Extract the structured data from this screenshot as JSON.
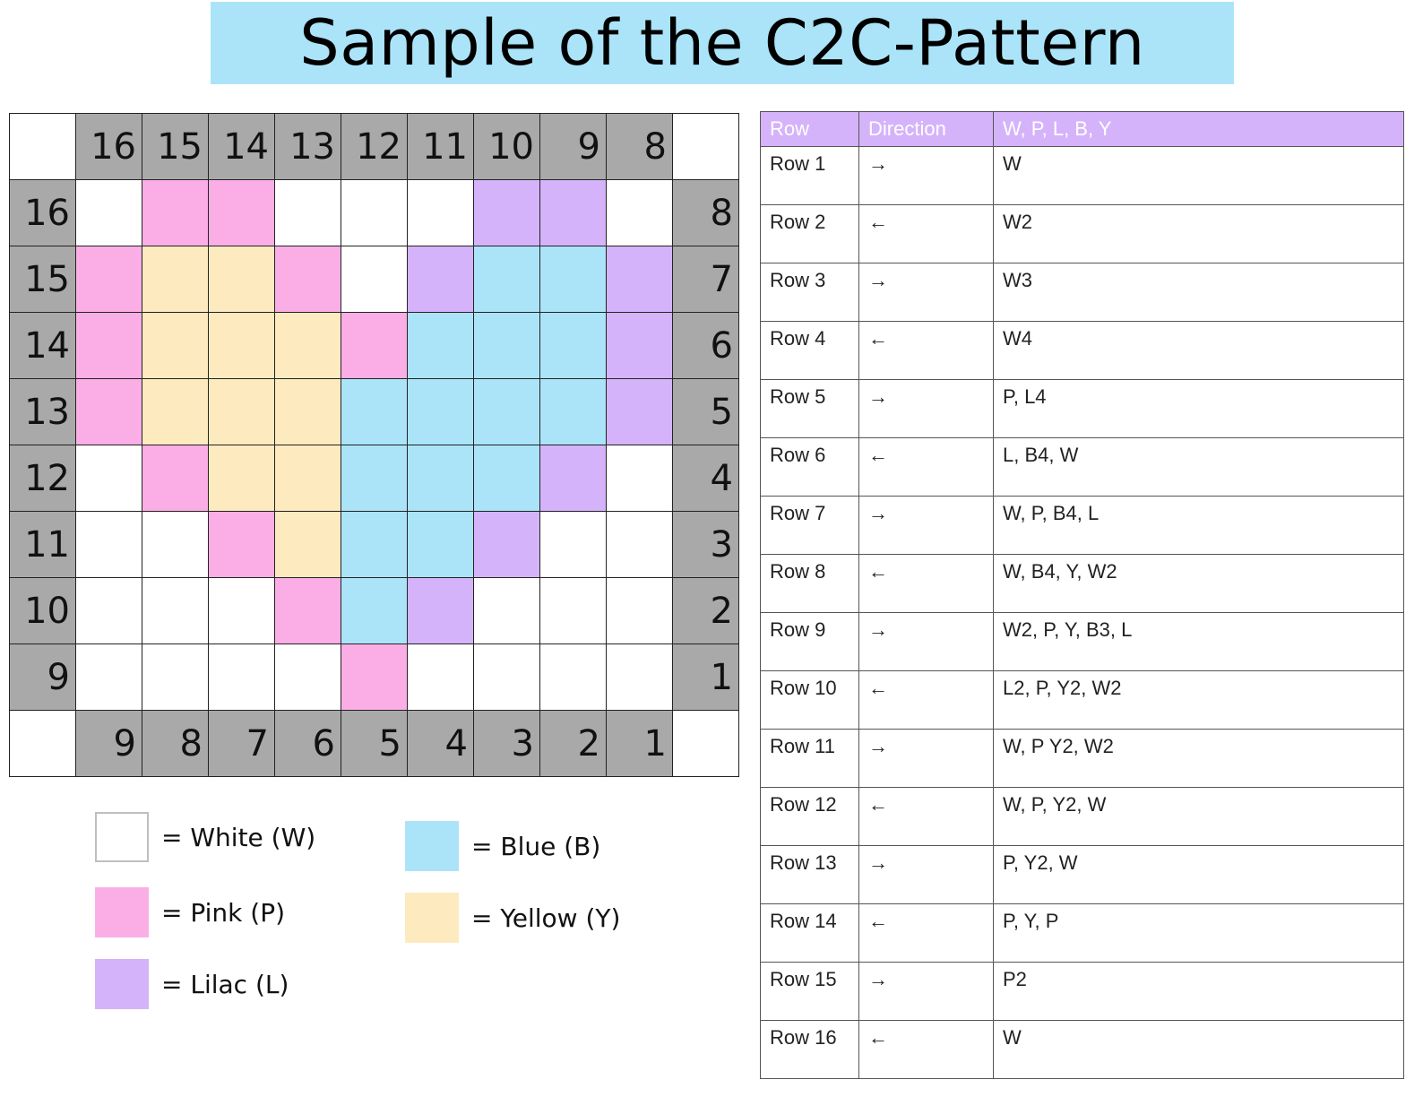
{
  "title": "Sample of the C2C-Pattern",
  "grid": {
    "top_labels": [
      "16",
      "15",
      "14",
      "13",
      "12",
      "11",
      "10",
      "9",
      "8"
    ],
    "left_labels": [
      "16",
      "15",
      "14",
      "13",
      "12",
      "11",
      "10",
      "9"
    ],
    "right_labels": [
      "8",
      "7",
      "6",
      "5",
      "4",
      "3",
      "2",
      "1"
    ],
    "bottom_labels": [
      "9",
      "8",
      "7",
      "6",
      "5",
      "4",
      "3",
      "2",
      "1"
    ],
    "rows": [
      [
        "W",
        "P",
        "P",
        "W",
        "W",
        "W",
        "L",
        "L",
        "W"
      ],
      [
        "P",
        "Y",
        "Y",
        "P",
        "W",
        "L",
        "B",
        "B",
        "L"
      ],
      [
        "P",
        "Y",
        "Y",
        "Y",
        "P",
        "B",
        "B",
        "B",
        "L"
      ],
      [
        "P",
        "Y",
        "Y",
        "Y",
        "B",
        "B",
        "B",
        "B",
        "L"
      ],
      [
        "W",
        "P",
        "Y",
        "Y",
        "B",
        "B",
        "B",
        "L",
        "W"
      ],
      [
        "W",
        "W",
        "P",
        "Y",
        "B",
        "B",
        "L",
        "W",
        "W"
      ],
      [
        "W",
        "W",
        "W",
        "P",
        "B",
        "L",
        "W",
        "W",
        "W"
      ],
      [
        "W",
        "W",
        "W",
        "W",
        "P",
        "W",
        "W",
        "W",
        "W"
      ]
    ]
  },
  "colors": {
    "W": "#ffffff",
    "P": "#fbaee6",
    "L": "#d5b3fb",
    "B": "#abe4f9",
    "Y": "#fdeabf",
    "header_gray": "#a9a9a9",
    "title_bg": "#abe4f9",
    "table_header_bg": "#d5b3fb"
  },
  "legend": [
    {
      "code": "W",
      "label": "= White (W)"
    },
    {
      "code": "B",
      "label": "= Blue (B)"
    },
    {
      "code": "P",
      "label": "= Pink (P)"
    },
    {
      "code": "Y",
      "label": "= Yellow (Y)"
    },
    {
      "code": "L",
      "label": "= Lilac (L)"
    }
  ],
  "table": {
    "headers": [
      "Row",
      "Direction",
      "W, P, L, B, Y"
    ],
    "rows": [
      {
        "row": "Row 1",
        "dir": "→",
        "colors": "W"
      },
      {
        "row": "Row 2",
        "dir": "←",
        "colors": "W2"
      },
      {
        "row": "Row 3",
        "dir": "→",
        "colors": "W3"
      },
      {
        "row": "Row 4",
        "dir": "←",
        "colors": "W4"
      },
      {
        "row": "Row 5",
        "dir": "→",
        "colors": "P, L4"
      },
      {
        "row": "Row 6",
        "dir": "←",
        "colors": "L, B4, W"
      },
      {
        "row": "Row 7",
        "dir": "→",
        "colors": "W, P, B4, L"
      },
      {
        "row": "Row 8",
        "dir": "←",
        "colors": "W, B4, Y, W2"
      },
      {
        "row": "Row 9",
        "dir": "→",
        "colors": "W2, P, Y, B3, L"
      },
      {
        "row": "Row 10",
        "dir": "←",
        "colors": "L2, P, Y2, W2"
      },
      {
        "row": "Row 11",
        "dir": "→",
        "colors": "W, P Y2, W2"
      },
      {
        "row": "Row 12",
        "dir": "←",
        "colors": "W, P, Y2, W"
      },
      {
        "row": "Row 13",
        "dir": "→",
        "colors": "P, Y2, W"
      },
      {
        "row": "Row 14",
        "dir": "←",
        "colors": "P, Y, P"
      },
      {
        "row": "Row 15",
        "dir": "→",
        "colors": "P2"
      },
      {
        "row": "Row 16",
        "dir": "←",
        "colors": "W"
      }
    ]
  }
}
